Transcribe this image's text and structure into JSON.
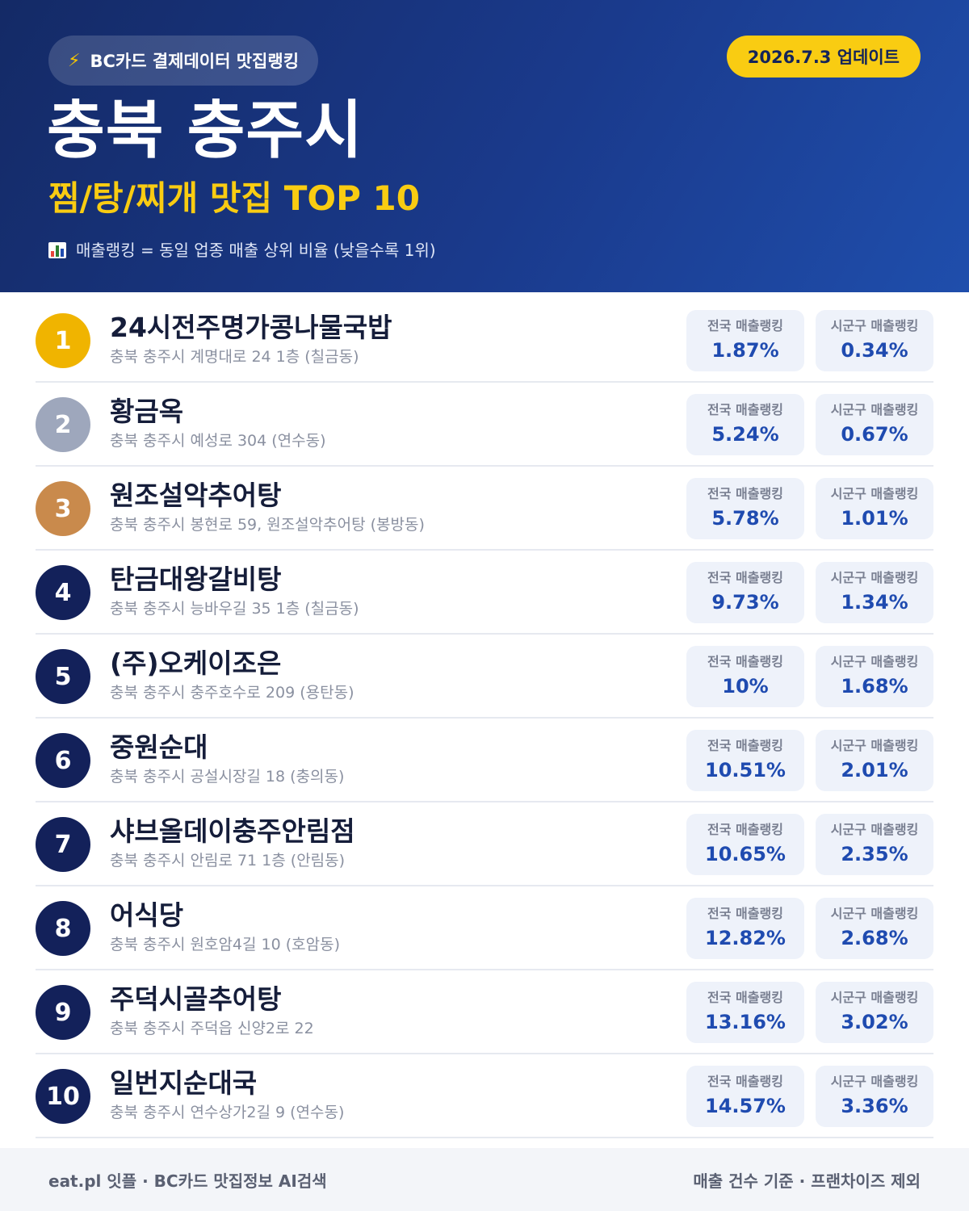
{
  "header": {
    "source": "BC카드 결제데이터 맛집랭킹",
    "update": "2026.7.3 업데이트",
    "region": "충북 충주시",
    "category": "찜/탕/찌개 맛집 TOP 10",
    "note": "매출랭킹 = 동일 업종 매출 상위 비율 (낮을수록 1위)"
  },
  "labels": {
    "national": "전국 매출랭킹",
    "local": "시군구 매출랭킹"
  },
  "colors": {
    "gold": "#f0b400",
    "silver": "#9ea7bc",
    "bronze": "#c98a4c",
    "navy": "#13215a"
  },
  "restaurants": [
    {
      "rank": "1",
      "name": "24시전주명가콩나물국밥",
      "address": "충북 충주시 계명대로 24 1층 (칠금동)",
      "national": "1.87%",
      "local": "0.34%"
    },
    {
      "rank": "2",
      "name": "황금옥",
      "address": "충북 충주시 예성로 304 (연수동)",
      "national": "5.24%",
      "local": "0.67%"
    },
    {
      "rank": "3",
      "name": "원조설악추어탕",
      "address": "충북 충주시 봉현로 59, 원조설악추어탕 (봉방동)",
      "national": "5.78%",
      "local": "1.01%"
    },
    {
      "rank": "4",
      "name": "탄금대왕갈비탕",
      "address": "충북 충주시 능바우길 35 1층 (칠금동)",
      "national": "9.73%",
      "local": "1.34%"
    },
    {
      "rank": "5",
      "name": "(주)오케이조은",
      "address": "충북 충주시 충주호수로 209 (용탄동)",
      "national": "10%",
      "local": "1.68%"
    },
    {
      "rank": "6",
      "name": "중원순대",
      "address": "충북 충주시 공설시장길 18 (충의동)",
      "national": "10.51%",
      "local": "2.01%"
    },
    {
      "rank": "7",
      "name": "샤브올데이충주안림점",
      "address": "충북 충주시 안림로 71 1층 (안림동)",
      "national": "10.65%",
      "local": "2.35%"
    },
    {
      "rank": "8",
      "name": "어식당",
      "address": "충북 충주시 원호암4길 10 (호암동)",
      "national": "12.82%",
      "local": "2.68%"
    },
    {
      "rank": "9",
      "name": "주덕시골추어탕",
      "address": "충북 충주시 주덕읍 신양2로 22",
      "national": "13.16%",
      "local": "3.02%"
    },
    {
      "rank": "10",
      "name": "일번지순대국",
      "address": "충북 충주시 연수상가2길 9 (연수동)",
      "national": "14.57%",
      "local": "3.36%"
    }
  ],
  "footer": {
    "left": "eat.pl 잇플 · BC카드 맛집정보 AI검색",
    "right": "매출 건수 기준 · 프랜차이즈 제외"
  }
}
